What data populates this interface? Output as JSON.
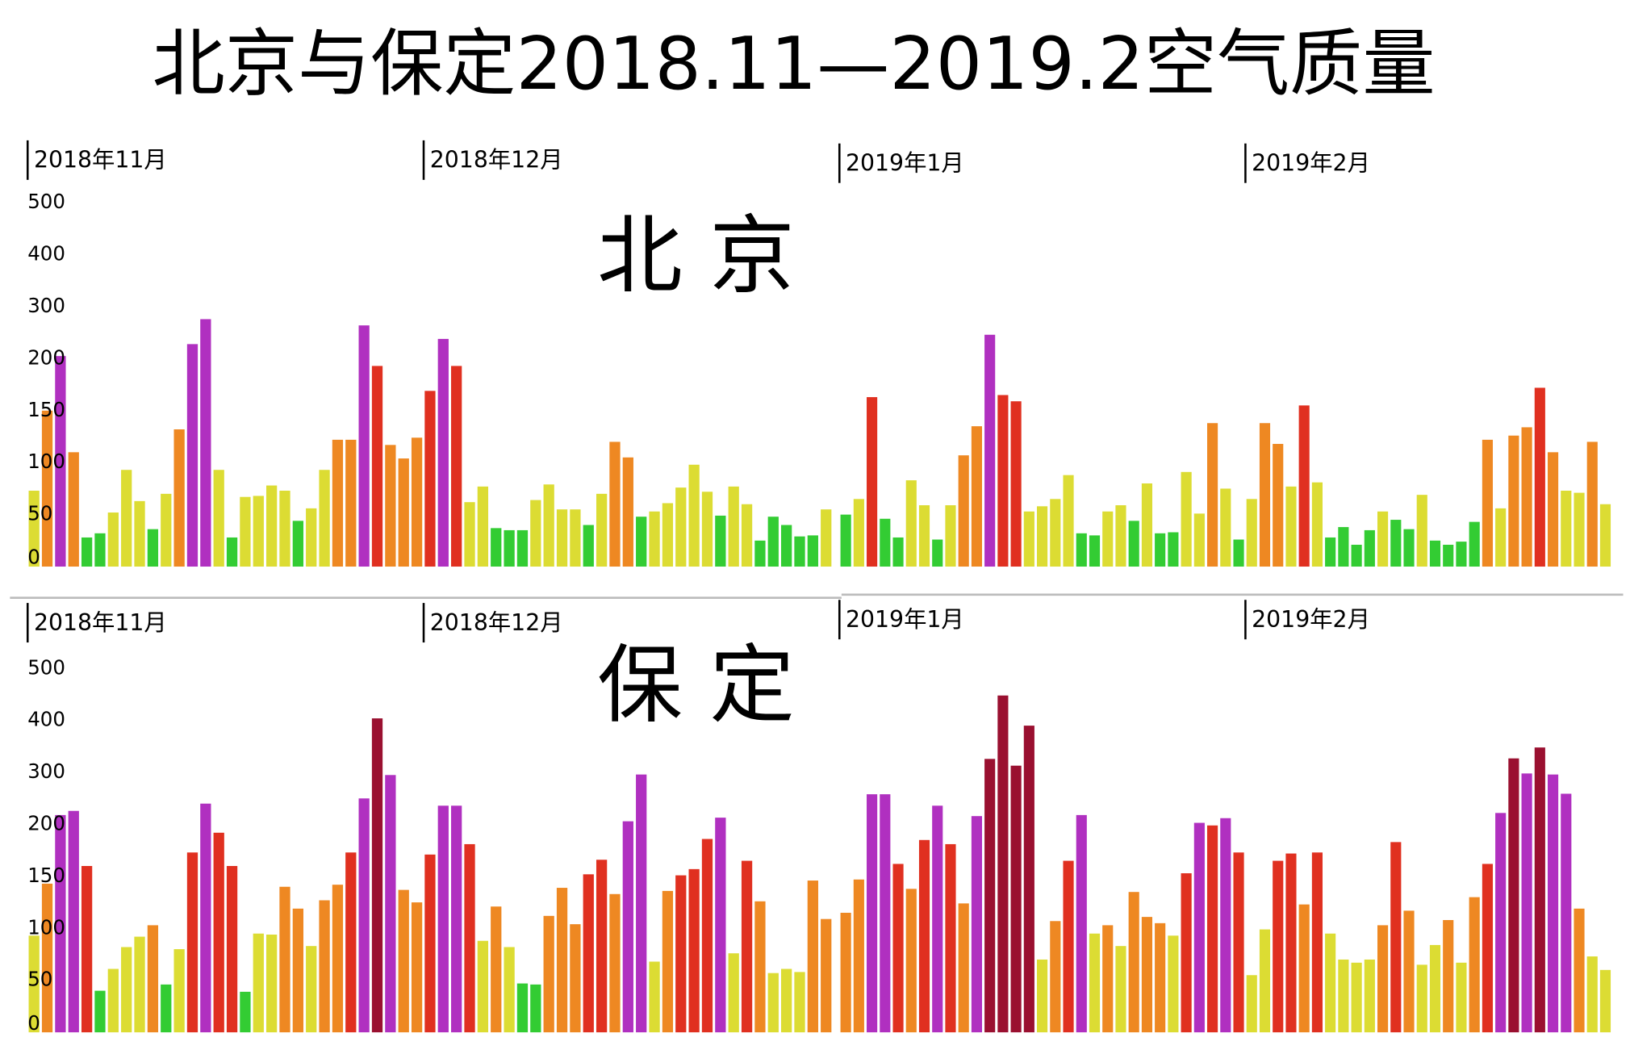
{
  "title": "北京与保定2018.11—2019.2空气质量",
  "chart_data": [
    {
      "type": "bar",
      "title": "北 京",
      "ylim": [
        0,
        500
      ],
      "yticks": [
        0,
        50,
        100,
        150,
        200,
        300,
        400,
        500
      ],
      "level_breaks": [
        50,
        100,
        150,
        200,
        300
      ],
      "level_colors": [
        "#33cc33",
        "#dcdc33",
        "#ee8822",
        "#e03020",
        "#b030c0",
        "#9a1030"
      ],
      "months": [
        {
          "name": "2018年11月",
          "values": [
            73,
            150,
            205,
            110,
            28,
            32,
            52,
            93,
            63,
            36,
            70,
            132,
            228,
            276,
            93,
            28,
            67,
            68,
            78,
            73,
            44,
            56,
            93,
            122,
            122,
            264,
            193,
            117,
            104,
            124
          ]
        },
        {
          "name": "2018年12月",
          "values": [
            169,
            238,
            193,
            62,
            77,
            37,
            35,
            35,
            64,
            79,
            55,
            55,
            40,
            70,
            120,
            105,
            48,
            53,
            61,
            76,
            98,
            72,
            49,
            77,
            60,
            25,
            48,
            40,
            29,
            30,
            55
          ]
        },
        {
          "name": "2019年1月",
          "values": [
            50,
            65,
            163,
            46,
            28,
            83,
            59,
            26,
            59,
            107,
            135,
            246,
            165,
            159,
            53,
            58,
            65,
            88,
            32,
            30,
            53,
            59,
            44,
            80,
            32,
            33,
            91,
            51,
            138,
            75,
            26
          ]
        },
        {
          "name": "2019年2月",
          "values": [
            65,
            138,
            118,
            77,
            155,
            81,
            28,
            38,
            21,
            35,
            53,
            45,
            36,
            69,
            25,
            21,
            24,
            43,
            122,
            56,
            126,
            134,
            172,
            110,
            73,
            71,
            120,
            60
          ]
        }
      ]
    },
    {
      "type": "bar",
      "title": "保 定",
      "ylim": [
        0,
        500
      ],
      "yticks": [
        0,
        50,
        100,
        150,
        200,
        300,
        400,
        500
      ],
      "level_breaks": [
        50,
        100,
        150,
        200,
        300
      ],
      "level_colors": [
        "#33cc33",
        "#dcdc33",
        "#ee8822",
        "#e03020",
        "#b030c0",
        "#9a1030"
      ],
      "months": [
        {
          "name": "2018年11月",
          "values": [
            93,
            143,
            218,
            226,
            160,
            40,
            61,
            82,
            92,
            103,
            46,
            80,
            173,
            240,
            192,
            160,
            39,
            95,
            94,
            140,
            119,
            83,
            127,
            142,
            173,
            250,
            404,
            295,
            137,
            125
          ]
        },
        {
          "name": "2018年12月",
          "values": [
            171,
            236,
            236,
            181,
            88,
            121,
            82,
            47,
            46,
            112,
            139,
            104,
            152,
            166,
            133,
            206,
            296,
            68,
            136,
            151,
            157,
            186,
            213,
            76,
            165,
            126,
            57,
            61,
            58,
            146,
            109
          ]
        },
        {
          "name": "2019年1月",
          "values": [
            115,
            147,
            258,
            258,
            162,
            138,
            185,
            236,
            181,
            124,
            216,
            326,
            448,
            313,
            390,
            70,
            107,
            165,
            218,
            95,
            103,
            83,
            135,
            111,
            105,
            93,
            153,
            203,
            199,
            212,
            173
          ]
        },
        {
          "name": "2019年2月",
          "values": [
            55,
            99,
            165,
            172,
            123,
            173,
            95,
            70,
            67,
            70,
            103,
            183,
            117,
            65,
            84,
            108,
            67,
            130,
            162,
            222,
            327,
            298,
            348,
            296,
            259,
            119,
            73,
            60
          ]
        }
      ]
    }
  ]
}
